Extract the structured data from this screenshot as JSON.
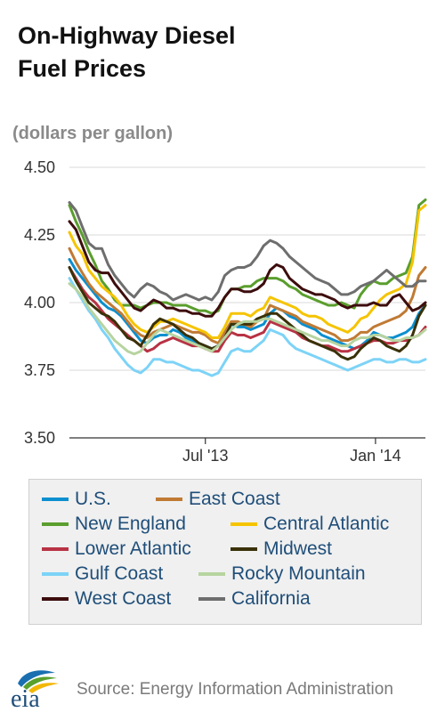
{
  "title_lines": [
    "On-Highway Diesel",
    "Fuel Prices"
  ],
  "units_label": "(dollars per gallon)",
  "source": "Source: Energy Information Administration",
  "logo_text": "eia",
  "chart_data": {
    "type": "line",
    "title": "On-Highway Diesel Fuel Prices",
    "ylabel": "(dollars per gallon)",
    "ylim": [
      3.5,
      4.5
    ],
    "yticks": [
      "3.50",
      "3.75",
      "4.00",
      "4.25",
      "4.50"
    ],
    "xtick_labels": [
      {
        "label": "Jul '13",
        "date": "2013-07-01"
      },
      {
        "label": "Jan '14",
        "date": "2014-01-01"
      }
    ],
    "x_range": [
      "2013-02-04",
      "2014-02-24"
    ],
    "grid": true,
    "legend_position": "bottom",
    "x": [
      "2013-02-04",
      "2013-02-11",
      "2013-02-18",
      "2013-02-25",
      "2013-03-04",
      "2013-03-11",
      "2013-03-18",
      "2013-03-25",
      "2013-04-01",
      "2013-04-08",
      "2013-04-15",
      "2013-04-22",
      "2013-04-29",
      "2013-05-06",
      "2013-05-13",
      "2013-05-20",
      "2013-05-27",
      "2013-06-03",
      "2013-06-10",
      "2013-06-17",
      "2013-06-24",
      "2013-07-01",
      "2013-07-08",
      "2013-07-15",
      "2013-07-22",
      "2013-07-29",
      "2013-08-05",
      "2013-08-12",
      "2013-08-19",
      "2013-08-26",
      "2013-09-02",
      "2013-09-09",
      "2013-09-16",
      "2013-09-23",
      "2013-09-30",
      "2013-10-07",
      "2013-10-14",
      "2013-10-21",
      "2013-10-28",
      "2013-11-04",
      "2013-11-11",
      "2013-11-18",
      "2013-11-25",
      "2013-12-02",
      "2013-12-09",
      "2013-12-16",
      "2013-12-23",
      "2013-12-30",
      "2014-01-06",
      "2014-01-13",
      "2014-01-20",
      "2014-01-27",
      "2014-02-03",
      "2014-02-10",
      "2014-02-17",
      "2014-02-24"
    ],
    "series": [
      {
        "name": "U.S.",
        "color": "#0b8fcf",
        "values": [
          4.16,
          4.12,
          4.09,
          4.06,
          4.03,
          4.0,
          3.98,
          3.97,
          3.95,
          3.92,
          3.89,
          3.86,
          3.85,
          3.87,
          3.88,
          3.88,
          3.9,
          3.89,
          3.87,
          3.86,
          3.85,
          3.84,
          3.83,
          3.84,
          3.88,
          3.92,
          3.91,
          3.91,
          3.9,
          3.91,
          3.92,
          3.96,
          3.98,
          3.97,
          3.95,
          3.94,
          3.92,
          3.91,
          3.9,
          3.88,
          3.87,
          3.86,
          3.85,
          3.84,
          3.83,
          3.84,
          3.86,
          3.89,
          3.88,
          3.87,
          3.87,
          3.88,
          3.89,
          3.91,
          3.96,
          3.99
        ]
      },
      {
        "name": "East Coast",
        "color": "#c07a34",
        "values": [
          4.2,
          4.15,
          4.11,
          4.07,
          4.04,
          4.02,
          4.0,
          3.98,
          3.96,
          3.93,
          3.9,
          3.88,
          3.87,
          3.89,
          3.9,
          3.91,
          3.92,
          3.91,
          3.9,
          3.89,
          3.89,
          3.88,
          3.86,
          3.85,
          3.89,
          3.93,
          3.93,
          3.92,
          3.91,
          3.93,
          3.94,
          3.99,
          3.98,
          3.97,
          3.96,
          3.95,
          3.93,
          3.92,
          3.91,
          3.9,
          3.89,
          3.88,
          3.86,
          3.86,
          3.87,
          3.89,
          3.89,
          3.91,
          3.92,
          3.93,
          3.94,
          3.95,
          3.97,
          4.02,
          4.1,
          4.13
        ]
      },
      {
        "name": "New England",
        "color": "#5a9e2d",
        "values": [
          4.36,
          4.3,
          4.25,
          4.19,
          4.14,
          4.08,
          4.05,
          4.01,
          3.99,
          3.99,
          3.99,
          3.98,
          3.99,
          4.0,
          4.0,
          4.0,
          3.99,
          3.99,
          3.99,
          3.98,
          3.97,
          3.97,
          3.96,
          3.97,
          4.02,
          4.05,
          4.05,
          4.06,
          4.06,
          4.08,
          4.09,
          4.09,
          4.09,
          4.08,
          4.06,
          4.05,
          4.03,
          4.02,
          4.01,
          4.0,
          3.99,
          3.99,
          4.0,
          3.99,
          3.98,
          4.03,
          4.06,
          4.08,
          4.07,
          4.07,
          4.09,
          4.1,
          4.11,
          4.17,
          4.36,
          4.38
        ]
      },
      {
        "name": "Central Atlantic",
        "color": "#f5c400",
        "values": [
          4.26,
          4.21,
          4.18,
          4.12,
          4.09,
          4.06,
          4.04,
          4.02,
          3.99,
          3.95,
          3.92,
          3.9,
          3.89,
          3.91,
          3.93,
          3.93,
          3.94,
          3.93,
          3.92,
          3.91,
          3.9,
          3.89,
          3.87,
          3.87,
          3.91,
          3.96,
          3.96,
          3.96,
          3.95,
          3.97,
          3.98,
          4.02,
          4.01,
          4.0,
          3.99,
          3.98,
          3.96,
          3.95,
          3.95,
          3.94,
          3.92,
          3.91,
          3.9,
          3.89,
          3.91,
          3.94,
          3.95,
          3.98,
          4.01,
          4.03,
          4.04,
          4.05,
          4.07,
          4.15,
          4.34,
          4.36
        ]
      },
      {
        "name": "Lower Atlantic",
        "color": "#b83244",
        "values": [
          4.13,
          4.09,
          4.05,
          4.02,
          4.0,
          3.97,
          3.94,
          3.92,
          3.9,
          3.88,
          3.86,
          3.84,
          3.82,
          3.83,
          3.85,
          3.86,
          3.87,
          3.86,
          3.85,
          3.84,
          3.84,
          3.83,
          3.82,
          3.82,
          3.86,
          3.89,
          3.88,
          3.88,
          3.87,
          3.88,
          3.89,
          3.93,
          3.92,
          3.91,
          3.9,
          3.89,
          3.87,
          3.86,
          3.85,
          3.84,
          3.84,
          3.83,
          3.82,
          3.82,
          3.83,
          3.84,
          3.85,
          3.86,
          3.86,
          3.85,
          3.85,
          3.86,
          3.86,
          3.87,
          3.88,
          3.91
        ]
      },
      {
        "name": "Midwest",
        "color": "#3a3108",
        "values": [
          4.13,
          4.08,
          4.04,
          4.0,
          3.98,
          3.96,
          3.95,
          3.93,
          3.9,
          3.87,
          3.86,
          3.84,
          3.88,
          3.92,
          3.94,
          3.93,
          3.92,
          3.9,
          3.88,
          3.87,
          3.85,
          3.84,
          3.83,
          3.84,
          3.87,
          3.92,
          3.92,
          3.92,
          3.92,
          3.94,
          3.95,
          3.96,
          3.96,
          3.94,
          3.92,
          3.9,
          3.88,
          3.86,
          3.85,
          3.84,
          3.83,
          3.82,
          3.8,
          3.79,
          3.8,
          3.83,
          3.85,
          3.87,
          3.86,
          3.84,
          3.83,
          3.82,
          3.84,
          3.88,
          3.95,
          3.99
        ]
      },
      {
        "name": "Gulf Coast",
        "color": "#7dd3f7",
        "values": [
          4.09,
          4.05,
          4.01,
          3.97,
          3.94,
          3.9,
          3.87,
          3.83,
          3.8,
          3.77,
          3.75,
          3.74,
          3.76,
          3.79,
          3.79,
          3.78,
          3.78,
          3.77,
          3.76,
          3.75,
          3.75,
          3.74,
          3.73,
          3.74,
          3.78,
          3.82,
          3.83,
          3.82,
          3.82,
          3.84,
          3.86,
          3.9,
          3.89,
          3.88,
          3.85,
          3.83,
          3.82,
          3.81,
          3.8,
          3.79,
          3.78,
          3.77,
          3.76,
          3.75,
          3.76,
          3.77,
          3.78,
          3.79,
          3.79,
          3.78,
          3.78,
          3.79,
          3.79,
          3.78,
          3.78,
          3.79
        ]
      },
      {
        "name": "Rocky Mountain",
        "color": "#b7d4a0",
        "values": [
          4.07,
          4.05,
          4.02,
          3.98,
          3.95,
          3.92,
          3.89,
          3.86,
          3.84,
          3.82,
          3.81,
          3.82,
          3.85,
          3.88,
          3.9,
          3.89,
          3.88,
          3.87,
          3.86,
          3.85,
          3.84,
          3.83,
          3.82,
          3.84,
          3.87,
          3.9,
          3.92,
          3.93,
          3.93,
          3.93,
          3.94,
          3.94,
          3.93,
          3.92,
          3.91,
          3.9,
          3.89,
          3.88,
          3.87,
          3.86,
          3.86,
          3.85,
          3.84,
          3.84,
          3.86,
          3.87,
          3.87,
          3.88,
          3.88,
          3.87,
          3.86,
          3.86,
          3.87,
          3.87,
          3.88,
          3.9
        ]
      },
      {
        "name": "West Coast",
        "color": "#3d0d0d",
        "values": [
          4.3,
          4.27,
          4.21,
          4.15,
          4.12,
          4.11,
          4.11,
          4.07,
          4.04,
          4.01,
          3.98,
          3.97,
          3.99,
          4.01,
          4.0,
          3.98,
          3.98,
          3.97,
          3.97,
          3.96,
          3.96,
          3.95,
          3.95,
          3.98,
          4.02,
          4.05,
          4.05,
          4.04,
          4.04,
          4.05,
          4.07,
          4.12,
          4.14,
          4.13,
          4.09,
          4.07,
          4.05,
          4.04,
          4.03,
          4.03,
          4.02,
          4.01,
          3.99,
          3.98,
          3.99,
          3.99,
          3.99,
          4.0,
          3.99,
          3.99,
          4.02,
          4.03,
          4.0,
          3.97,
          3.98,
          4.0
        ]
      },
      {
        "name": "California",
        "color": "#6e6e6e",
        "values": [
          4.37,
          4.34,
          4.28,
          4.22,
          4.2,
          4.2,
          4.14,
          4.1,
          4.07,
          4.04,
          4.02,
          4.05,
          4.07,
          4.06,
          4.04,
          4.03,
          4.01,
          4.02,
          4.03,
          4.02,
          4.01,
          4.02,
          4.01,
          4.04,
          4.1,
          4.12,
          4.13,
          4.13,
          4.14,
          4.17,
          4.21,
          4.23,
          4.22,
          4.2,
          4.17,
          4.15,
          4.13,
          4.11,
          4.09,
          4.08,
          4.07,
          4.05,
          4.03,
          4.03,
          4.04,
          4.06,
          4.07,
          4.08,
          4.1,
          4.12,
          4.1,
          4.08,
          4.06,
          4.06,
          4.08,
          4.08
        ]
      }
    ]
  }
}
